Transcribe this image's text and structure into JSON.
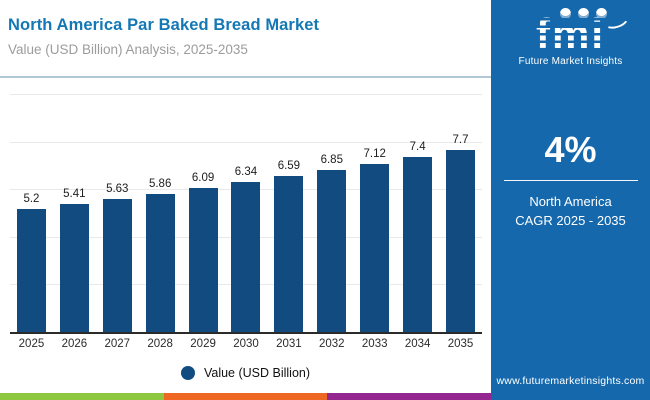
{
  "header": {
    "title": "North America Par Baked Bread Market",
    "subtitle": "Value (USD Billion) Analysis, 2025-2035"
  },
  "chart_data": {
    "type": "bar",
    "categories": [
      "2025",
      "2026",
      "2027",
      "2028",
      "2029",
      "2030",
      "2031",
      "2032",
      "2033",
      "2034",
      "2035"
    ],
    "values": [
      5.2,
      5.41,
      5.63,
      5.86,
      6.09,
      6.34,
      6.59,
      6.85,
      7.12,
      7.4,
      7.7
    ],
    "value_labels": [
      "5.2",
      "5.41",
      "5.63",
      "5.86",
      "6.09",
      "6.34",
      "6.59",
      "6.85",
      "7.12",
      "7.4",
      "7.7"
    ],
    "title": "North America Par Baked Bread Market",
    "xlabel": "",
    "ylabel": "Value (USD Billion)",
    "ylim": [
      0,
      10
    ],
    "grid": true,
    "gridline_values": [
      2,
      4,
      6,
      8,
      10
    ],
    "legend_position": "bottom",
    "bar_color": "#114B80"
  },
  "legend": {
    "label": "Value (USD Billion)"
  },
  "sidebar": {
    "logo": {
      "text": "fmi",
      "tagline": "Future Market Insights"
    },
    "cagr_value": "4%",
    "region": "North America",
    "period": "CAGR 2025 - 2035",
    "website": "www.futuremarketinsights.com"
  },
  "colors": {
    "title_blue": "#1478B4",
    "bar_navy": "#114B80",
    "sidebar_blue": "#1568AC",
    "strip_green": "#8DC63F",
    "strip_orange": "#EE6823",
    "strip_purple": "#93278F"
  }
}
